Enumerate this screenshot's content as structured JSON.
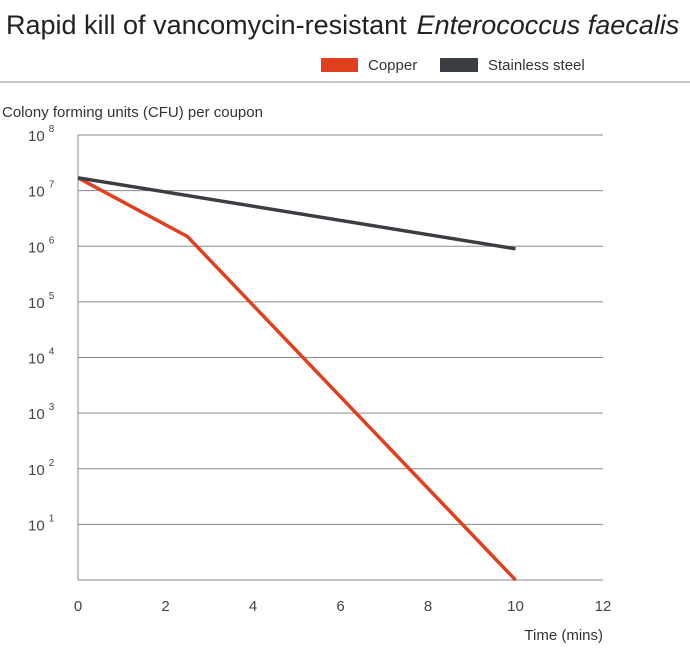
{
  "chart_data": {
    "type": "line",
    "title": "Rapid kill of vancomycin-resistant",
    "title_italic": "Enterococcus faecalis",
    "ylabel": "Colony forming units (CFU) per coupon",
    "xlabel": "Time (mins)",
    "x_ticks": [
      0,
      2,
      4,
      6,
      8,
      10,
      12
    ],
    "xlim": [
      0,
      12
    ],
    "y_scale": "log",
    "ylim": [
      1,
      100000000
    ],
    "y_ticks": [
      {
        "value": 10,
        "base": "10",
        "exp": "1"
      },
      {
        "value": 100,
        "base": "10",
        "exp": "2"
      },
      {
        "value": 1000,
        "base": "10",
        "exp": "3"
      },
      {
        "value": 10000,
        "base": "10",
        "exp": "4"
      },
      {
        "value": 100000,
        "base": "10",
        "exp": "5"
      },
      {
        "value": 1000000,
        "base": "10",
        "exp": "6"
      },
      {
        "value": 10000000,
        "base": "10",
        "exp": "7"
      },
      {
        "value": 100000000,
        "base": "10",
        "exp": "8"
      }
    ],
    "grid": "horizontal",
    "legend_position": "top-right",
    "series": [
      {
        "name": "Copper",
        "color": "#e0401e",
        "x": [
          0,
          2.5,
          10
        ],
        "y": [
          17000000,
          1500000,
          1
        ]
      },
      {
        "name": "Stainless steel",
        "color": "#3a3e42",
        "x": [
          0,
          10
        ],
        "y": [
          17000000,
          900000
        ]
      }
    ]
  }
}
